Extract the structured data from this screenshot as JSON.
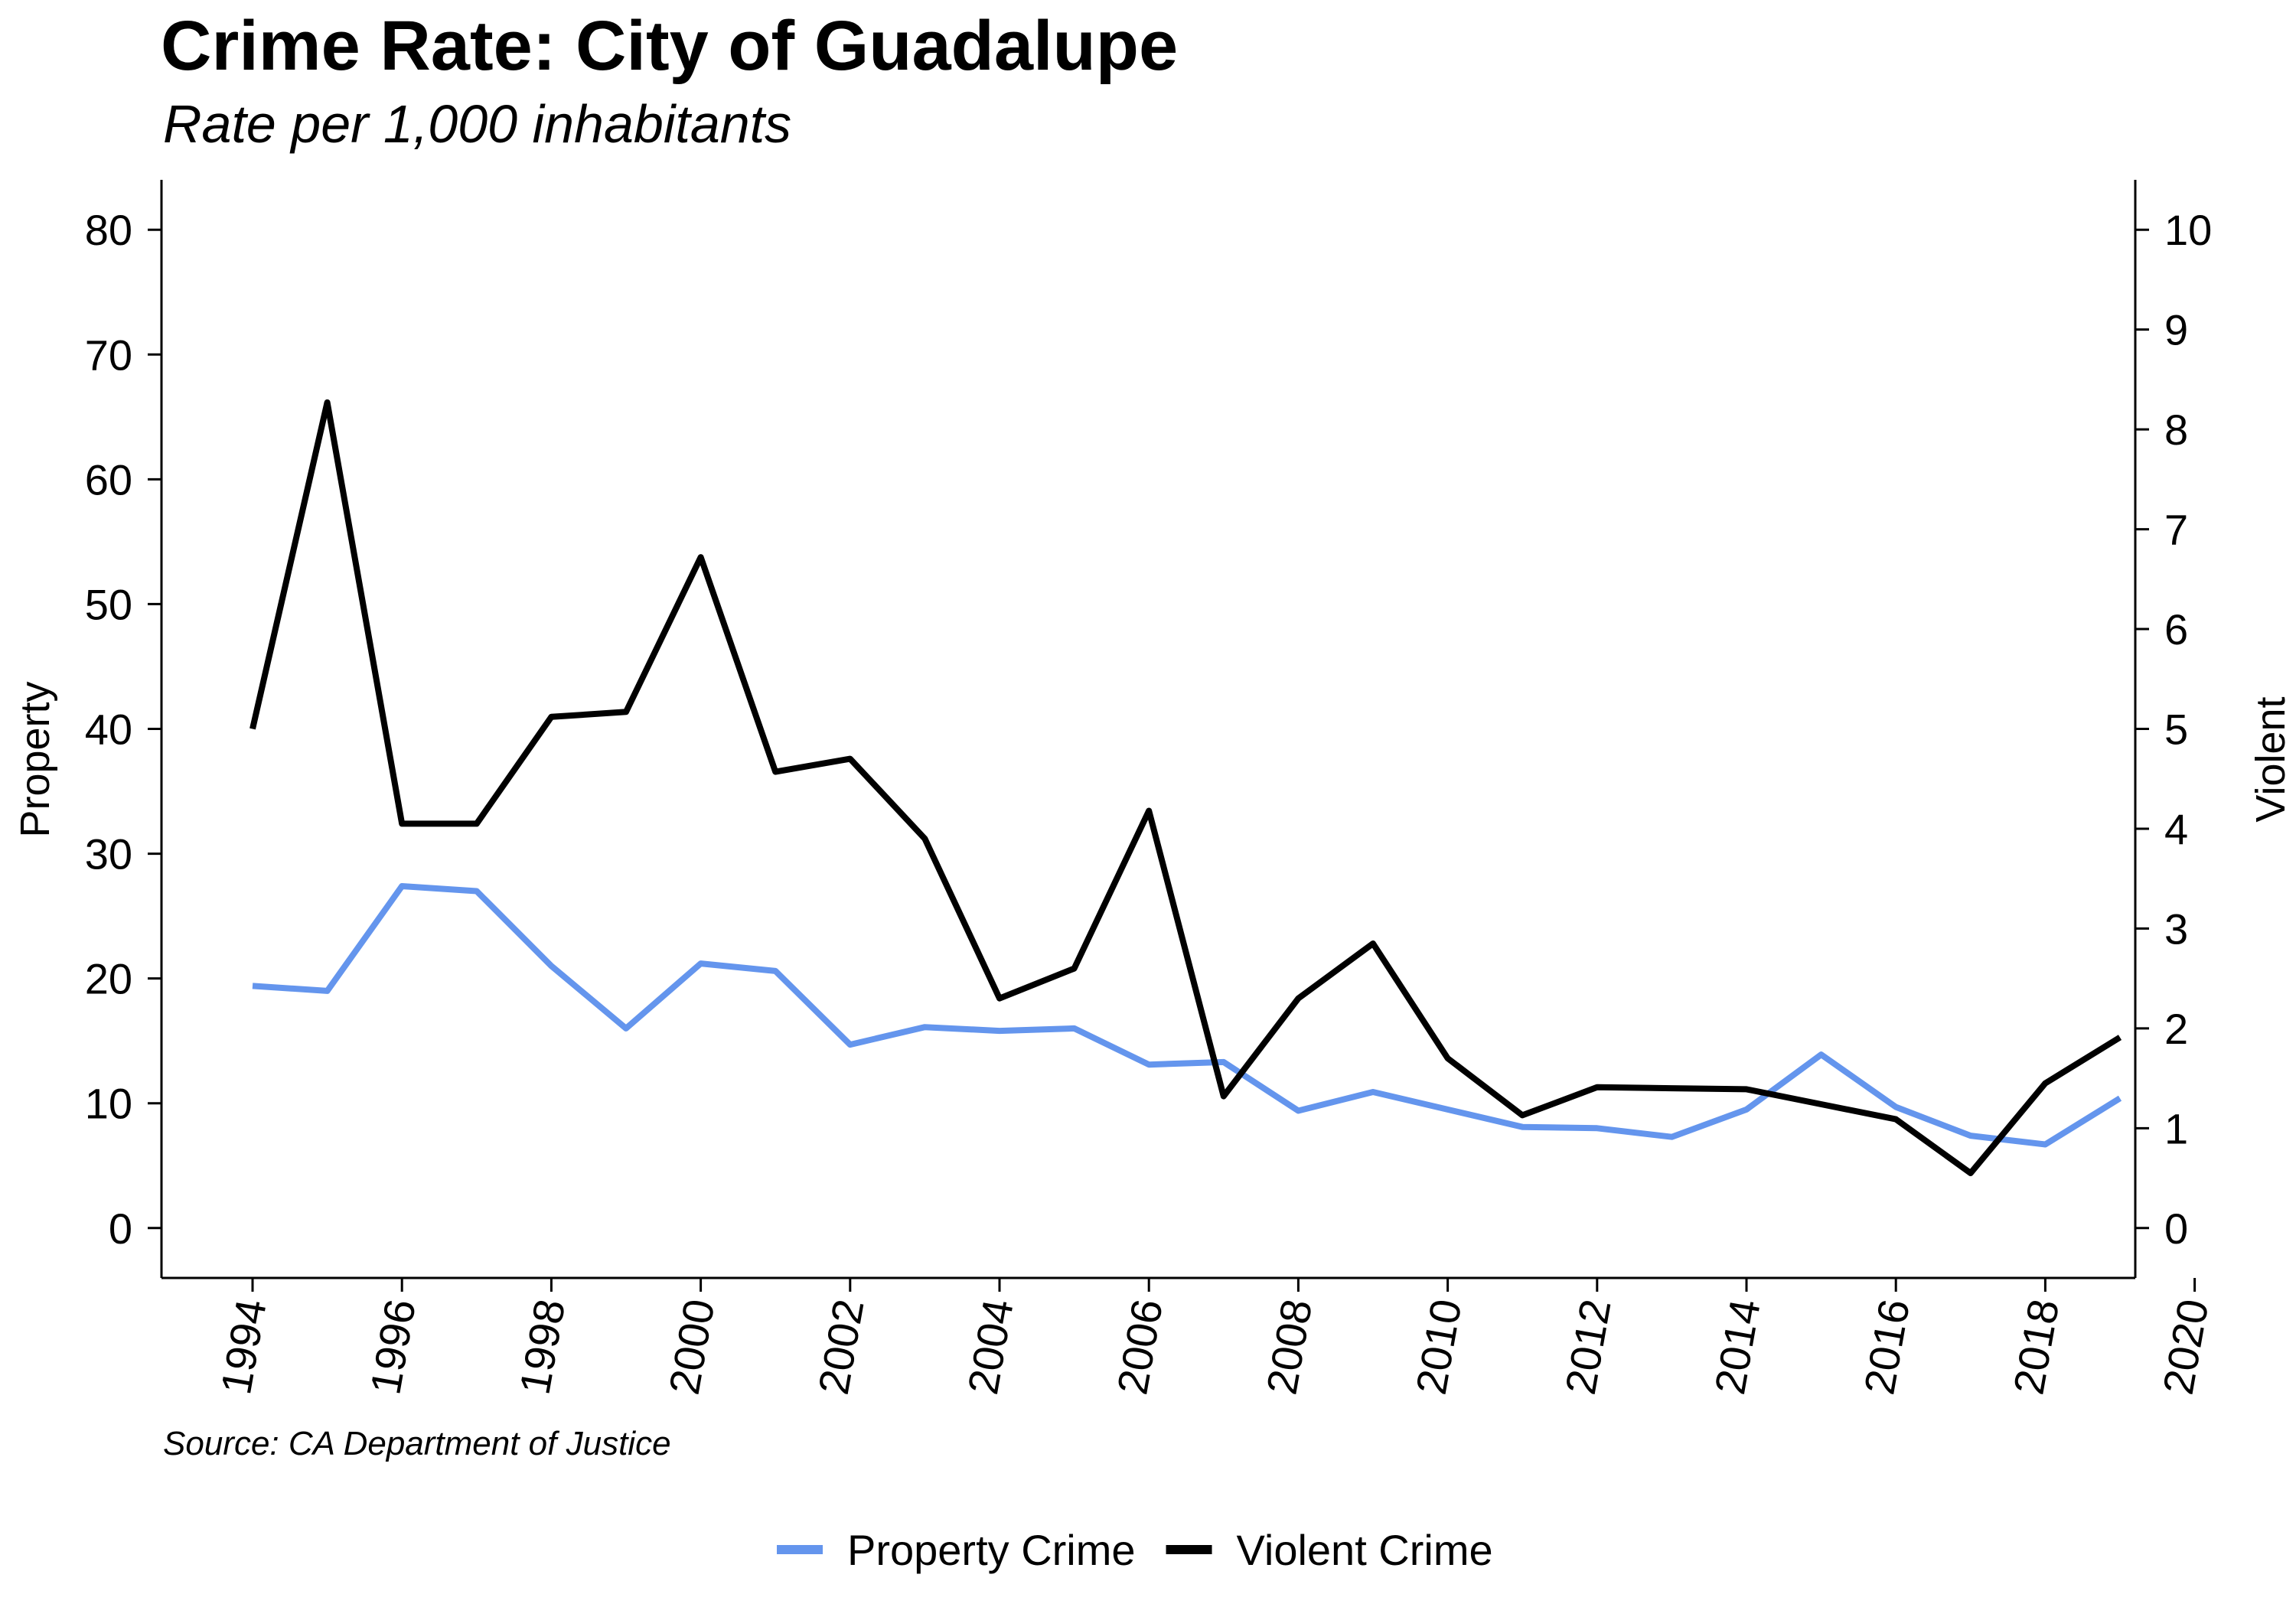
{
  "title": "Crime Rate: City of Guadalupe",
  "subtitle": "Rate per 1,000 inhabitants",
  "source": "Source: CA Department of Justice",
  "chart_data": {
    "type": "line",
    "x": [
      1994,
      1995,
      1996,
      1997,
      1998,
      1999,
      2000,
      2001,
      2002,
      2003,
      2004,
      2005,
      2006,
      2007,
      2008,
      2009,
      2010,
      2011,
      2012,
      2013,
      2014,
      2015,
      2016,
      2017,
      2018,
      2019
    ],
    "x_ticks": [
      "1994",
      "1996",
      "1998",
      "2000",
      "2002",
      "2004",
      "2006",
      "2008",
      "2010",
      "2012",
      "2014",
      "2016",
      "2018",
      "2020"
    ],
    "xlim": [
      1993,
      2020.2
    ],
    "ylabel": "Property",
    "ylim": [
      -4,
      84
    ],
    "y_ticks": [
      0,
      10,
      20,
      30,
      40,
      50,
      60,
      70,
      80
    ],
    "y2label": "Violent",
    "y2lim": [
      -0.5,
      10.5
    ],
    "y2_ticks": [
      0,
      1,
      2,
      3,
      4,
      5,
      6,
      7,
      8,
      9,
      10
    ],
    "series": [
      {
        "name": "Property Crime",
        "axis": "left",
        "color": "#6495ED",
        "values": [
          19.4,
          19.0,
          27.4,
          27.0,
          21.0,
          16.0,
          21.2,
          20.6,
          14.7,
          16.1,
          15.8,
          16.0,
          13.1,
          13.3,
          9.4,
          10.9,
          9.5,
          8.1,
          8.0,
          7.3,
          9.5,
          13.9,
          9.7,
          7.4,
          6.7,
          10.4
        ]
      },
      {
        "name": "Violent Crime",
        "axis": "right",
        "color": "#000000",
        "values": [
          5.0,
          8.27,
          4.05,
          4.05,
          5.12,
          5.17,
          6.72,
          4.57,
          4.7,
          3.9,
          2.3,
          2.6,
          4.18,
          1.32,
          2.3,
          2.85,
          1.7,
          1.13,
          1.41,
          1.4,
          1.39,
          1.24,
          1.09,
          0.55,
          1.45,
          1.91
        ]
      }
    ],
    "legend_position": "bottom",
    "grid": false
  }
}
